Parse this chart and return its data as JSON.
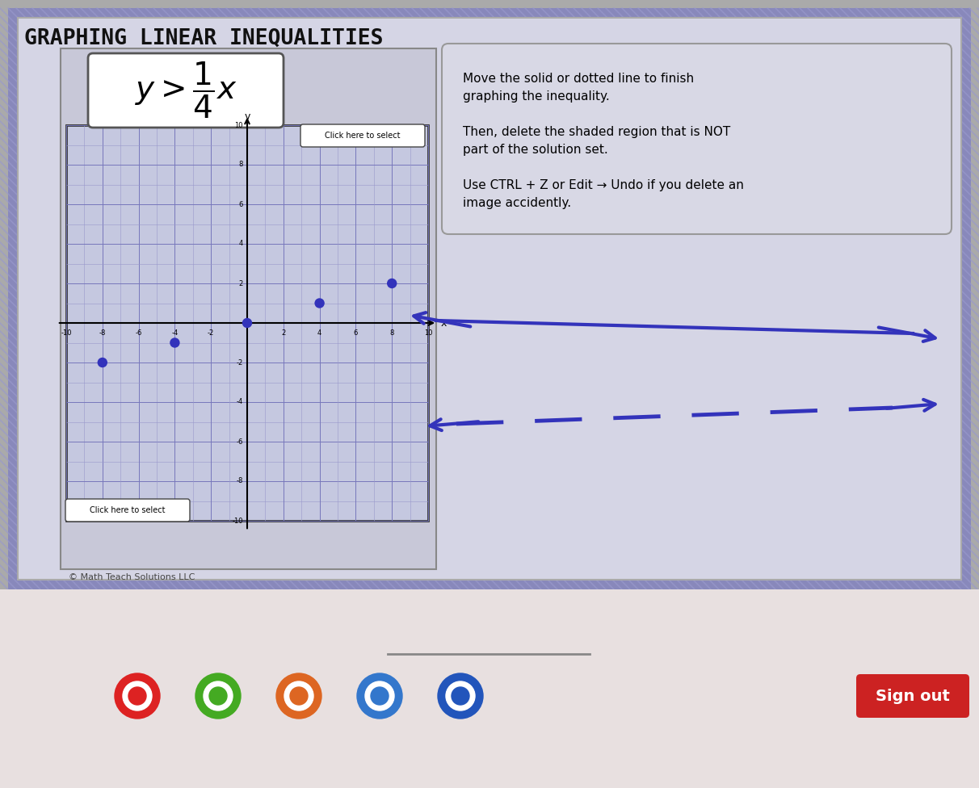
{
  "title": "GRAPHING LINEAR INEQUALITIES",
  "bg_outer": "#aaaacc",
  "bg_inner": "#d8d8e8",
  "bg_graph": "#c5c8e0",
  "dot_color": "#3333bb",
  "dot_size": 80,
  "dots_x": [
    -8,
    -4,
    0,
    4,
    8
  ],
  "dots_y": [
    -2,
    -1,
    0,
    1,
    2
  ],
  "arrow_color": "#3333bb",
  "copyright": "© Math Teach Solutions LLC",
  "sign_out_bg": "#cc2222",
  "sign_out_text": "Sign out",
  "click_select_text": "Click here to select",
  "instr1": "Move the solid or dotted line to finish",
  "instr2": "graphing the inequality.",
  "instr3": "Then, delete the shaded region that is NOT",
  "instr4": "part of the solution set.",
  "instr5": "Use CTRL + Z or Edit → Undo if you delete an",
  "instr6": "image accidently.",
  "stripe_color": "#8888bb",
  "stripe_color2": "#6666aa",
  "taskbar_bg": "#e8e0e0",
  "grid_color_minor": "#9999cc",
  "grid_color_major": "#7777bb"
}
